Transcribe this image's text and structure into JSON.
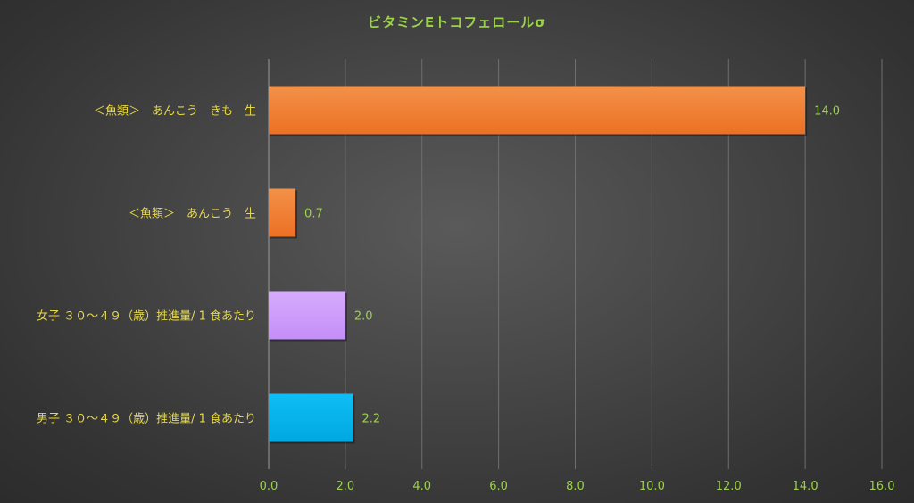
{
  "chart_data": {
    "type": "bar",
    "orientation": "horizontal",
    "title": "ビタミンEトコフェロールσ",
    "categories": [
      "＜魚類＞　あんこう　きも　生",
      "＜魚類＞　あんこう　生",
      "女子 ３０～４９（歳）推進量/ 1 食あたり",
      "男子 ３０～４９（歳）推進量/ 1 食あたり"
    ],
    "values": [
      14.0,
      0.7,
      2.0,
      2.2
    ],
    "value_labels": [
      "14.0",
      "0.7",
      "2.0",
      "2.2"
    ],
    "colors": [
      "#f07a2e",
      "#f07a2e",
      "#cc9bfb",
      "#00b0ea"
    ],
    "xlim": [
      0,
      16
    ],
    "xticks": [
      "0.0",
      "2.0",
      "4.0",
      "6.0",
      "8.0",
      "10.0",
      "12.0",
      "14.0",
      "16.0"
    ],
    "grid": "vertical",
    "legend": "none"
  }
}
